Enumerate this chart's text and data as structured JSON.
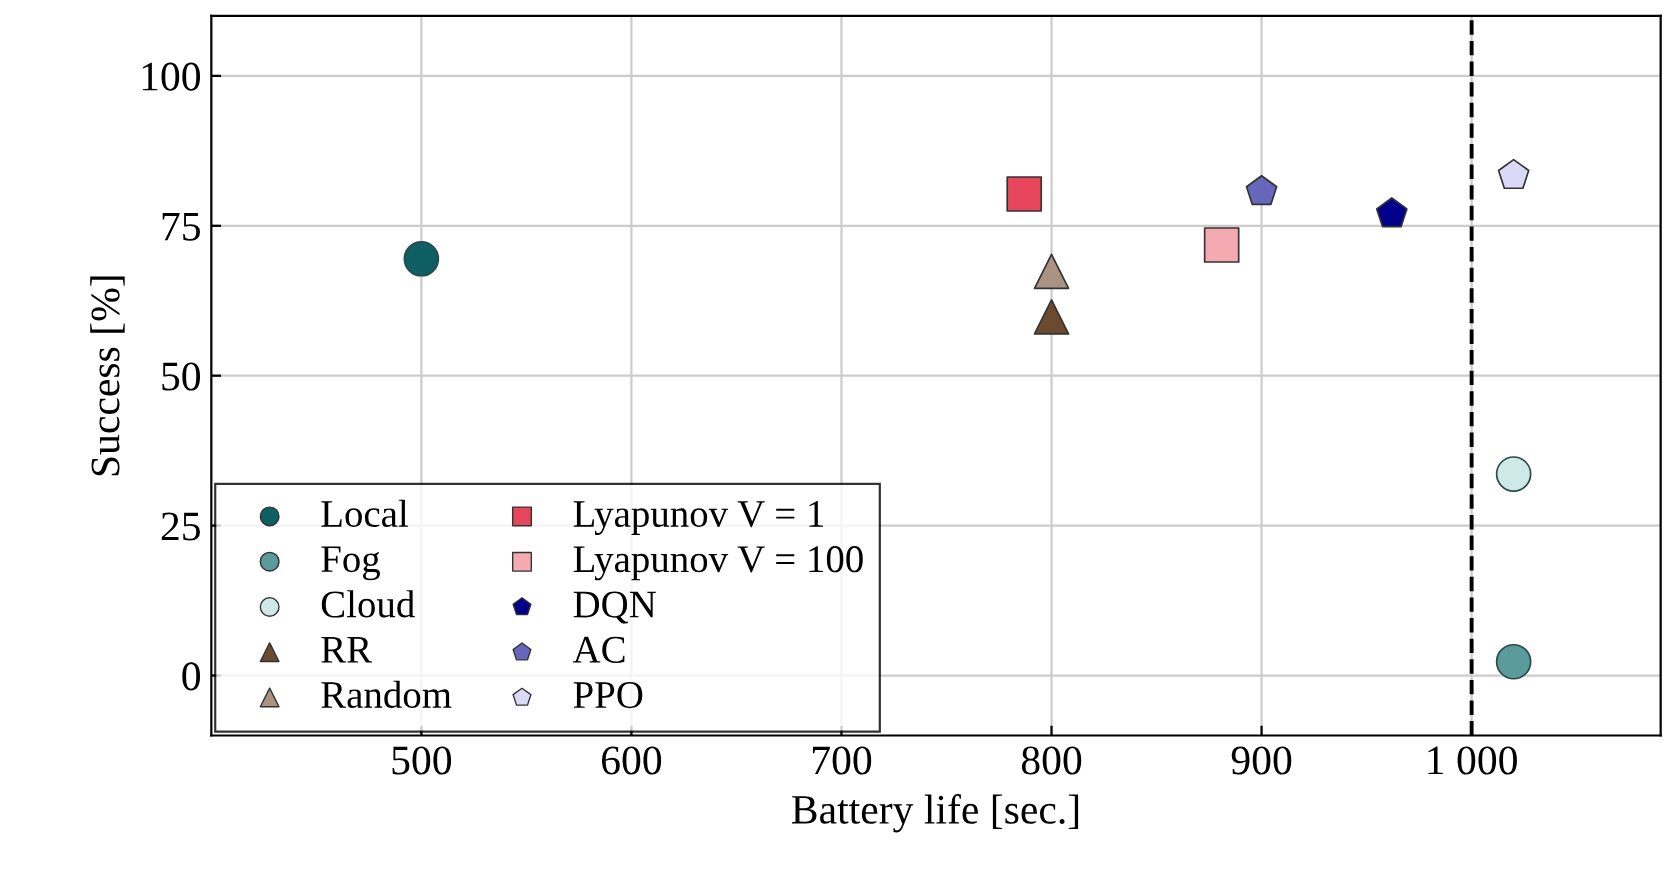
{
  "chart_data": {
    "type": "scatter",
    "xlabel": "Battery life [sec.]",
    "ylabel": "Success [%]",
    "xlim": [
      400,
      1090
    ],
    "ylim": [
      -10,
      110
    ],
    "xticks": [
      500,
      600,
      700,
      800,
      900,
      {
        "value": 1000,
        "label": "1 000"
      }
    ],
    "yticks": [
      0,
      25,
      50,
      75,
      100
    ],
    "grid": true,
    "legend": "bottom left",
    "ref_lines": [
      {
        "axis": "x",
        "value": 1000,
        "line_style": "dashed",
        "color": "#000000"
      }
    ],
    "series": [
      {
        "name": "Local",
        "color": "#0e5f63",
        "marker": "circle",
        "x": [
          500
        ],
        "values": [
          69.5
        ]
      },
      {
        "name": "Fog",
        "color": "#5b9b9c",
        "marker": "circle",
        "x": [
          1020
        ],
        "values": [
          2.3
        ]
      },
      {
        "name": "Cloud",
        "color": "#cfe8e8",
        "marker": "circle",
        "x": [
          1020
        ],
        "values": [
          33.6
        ]
      },
      {
        "name": "RR",
        "color": "#6b4a2f",
        "marker": "triangle",
        "x": [
          800
        ],
        "values": [
          59.8
        ]
      },
      {
        "name": "Random",
        "color": "#ab9383",
        "marker": "triangle",
        "x": [
          800
        ],
        "values": [
          67.4
        ]
      },
      {
        "name": "Lyapunov V = 1",
        "color": "#e8465a",
        "marker": "square",
        "x": [
          787
        ],
        "values": [
          80.3
        ]
      },
      {
        "name": "Lyapunov V = 100",
        "color": "#f5aab2",
        "marker": "square",
        "x": [
          881
        ],
        "values": [
          71.8
        ]
      },
      {
        "name": "DQN",
        "color": "#00008b",
        "x": [
          962
        ],
        "values": [
          77
        ]
      },
      {
        "name": "AC",
        "color": "#6666bb",
        "x": [
          900
        ],
        "values": [
          80.7
        ]
      },
      {
        "name": "PPO",
        "color": "#dadaf8",
        "x": [
          1020
        ],
        "values": [
          83.4
        ]
      }
    ]
  }
}
